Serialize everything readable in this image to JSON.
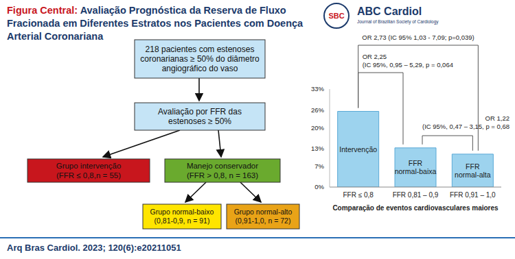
{
  "header": {
    "label": "Figura Central:",
    "title": "Avaliação Prognóstica da Reserva de Fluxo Fracionada em Diferentes Estratos nos Pacientes com Doença Arterial Coronariana",
    "logos": [
      "SBC",
      "ABC Cardiol",
      "Journal of Brazilian Society of Cardiology"
    ]
  },
  "flowchart": {
    "nodes": [
      {
        "lines": [
          "218 pacientes com estenoses",
          "coronarianas ≥ 50% do diâmetro",
          "angiográfico do vaso"
        ]
      },
      {
        "lines": [
          "Avaliação por FFR das",
          "estenoses ≥ 50%"
        ]
      },
      {
        "lines": [
          "Grupo intervenção",
          "(FFR ≤ 0,8,n = 55)"
        ]
      },
      {
        "lines": [
          "Manejo conservador",
          "(FFR > 0,8, n = 163)"
        ]
      },
      {
        "lines": [
          "Grupo normal-baixo",
          "(0,81-0,9, n = 91)"
        ]
      },
      {
        "lines": [
          "Grupo normal-alto",
          "(0,91-1,0, n = 72)"
        ]
      }
    ]
  },
  "chart_data": {
    "type": "bar",
    "categories": [
      "FFR ≤ 0,8",
      "FFR 0,81 – 0,9",
      "FFR 0,91 – 1,0"
    ],
    "values": [
      25.5,
      13.2,
      11.1
    ],
    "bar_labels": [
      "Intervenção",
      "FFR normal-baixa",
      "FFR normal-alta"
    ],
    "xlabel": "Comparação de eventos cardiovasculares maiores",
    "color": "#9dd3ee",
    "ylim": [
      0,
      33
    ],
    "yticks": [
      {
        "value": 0,
        "label": "0%"
      },
      {
        "value": 7,
        "label": "7%"
      },
      {
        "value": 13,
        "label": "13%"
      },
      {
        "value": 20,
        "label": "20%"
      },
      {
        "value": 26,
        "label": "26%"
      },
      {
        "value": 33,
        "label": "33%"
      }
    ],
    "grid": false,
    "annotations": [
      {
        "lines": [
          "OR 2,73 (IC 95% 1,03 - 7,09; p=0,039)"
        ],
        "between": [
          "FFR ≤ 0,8",
          "FFR 0,91 – 1,0"
        ]
      },
      {
        "lines": [
          "OR 2,25",
          "(IC 95%, 0,95 – 5,29, p = 0,064"
        ],
        "between": [
          "FFR ≤ 0,8",
          "FFR 0,81 – 0,9"
        ]
      },
      {
        "lines": [
          "OR 1,22",
          "(IC 95%, 0,47 – 3,15, p = 0,68"
        ],
        "between": [
          "FFR 0,81 – 0,9",
          "FFR 0,91 – 1,0"
        ]
      }
    ]
  },
  "footer": {
    "citation": "Arq Bras Cardiol. 2023; 120(6):e20211051"
  }
}
